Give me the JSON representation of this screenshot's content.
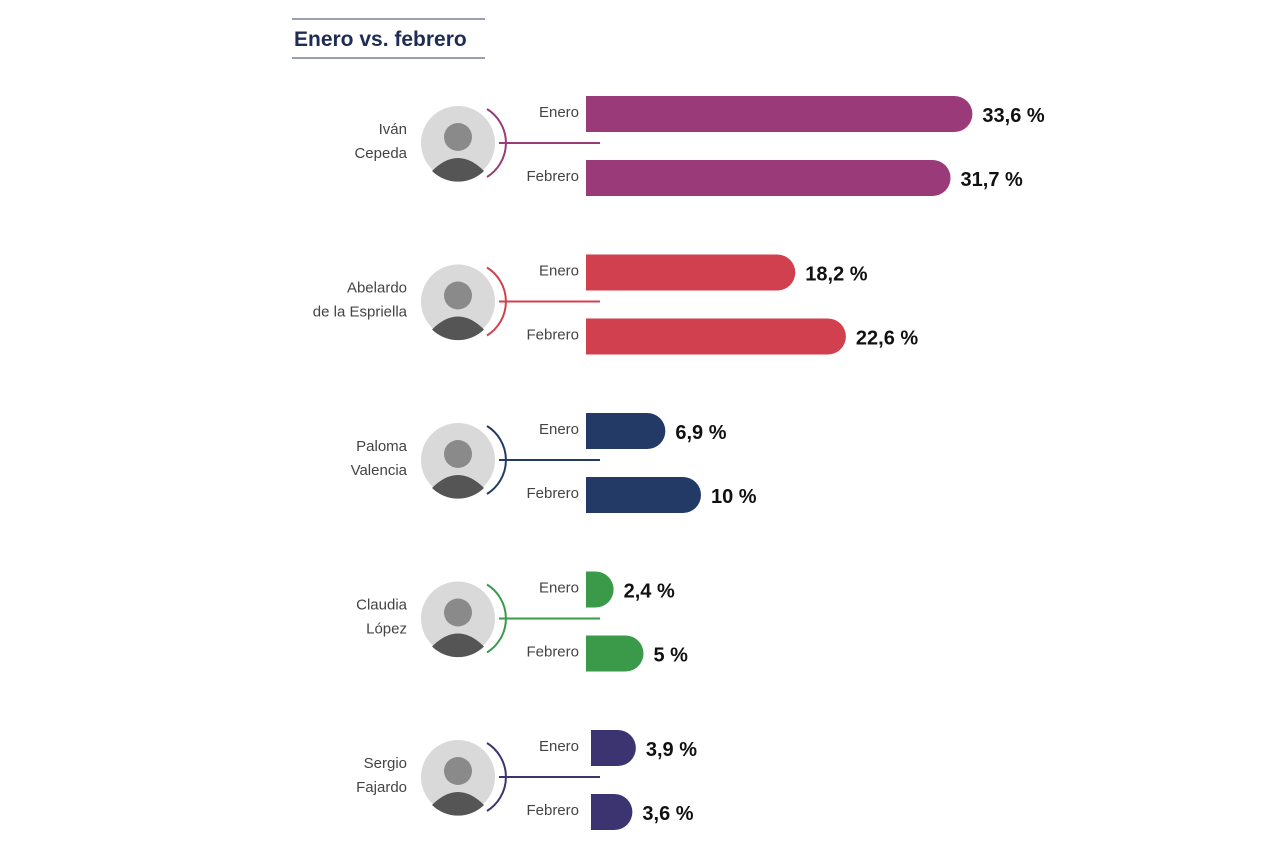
{
  "chart_data": {
    "type": "bar",
    "orientation": "horizontal",
    "title": "Enero vs. febrero",
    "series_labels": [
      "Enero",
      "Febrero"
    ],
    "unit": "%",
    "categories": [
      "Iván Cepeda",
      "Abelardo de la Espriella",
      "Paloma Valencia",
      "Claudia López",
      "Sergio Fajardo"
    ],
    "candidates": [
      {
        "name_lines": [
          "Iván",
          "Cepeda"
        ],
        "color": "#9b3a78",
        "values": [
          33.6,
          31.7
        ],
        "labels": [
          "33,6 %",
          "31,7 %"
        ]
      },
      {
        "name_lines": [
          "Abelardo",
          "de la Espriella"
        ],
        "color": "#d0404e",
        "values": [
          18.2,
          22.6
        ],
        "labels": [
          "18,2 %",
          "22,6 %"
        ]
      },
      {
        "name_lines": [
          "Paloma",
          "Valencia"
        ],
        "color": "#243a66",
        "values": [
          6.9,
          10
        ],
        "labels": [
          "6,9 %",
          "10 %"
        ]
      },
      {
        "name_lines": [
          "Claudia",
          "López"
        ],
        "color": "#3a9a4a",
        "values": [
          2.4,
          5
        ],
        "labels": [
          "2,4 %",
          "5 %"
        ]
      },
      {
        "name_lines": [
          "Sergio",
          "Fajardo"
        ],
        "color": "#3b3470",
        "values": [
          3.9,
          3.6
        ],
        "labels": [
          "3,9 %",
          "3,6 %"
        ]
      }
    ],
    "grid": false,
    "legend": "none"
  }
}
